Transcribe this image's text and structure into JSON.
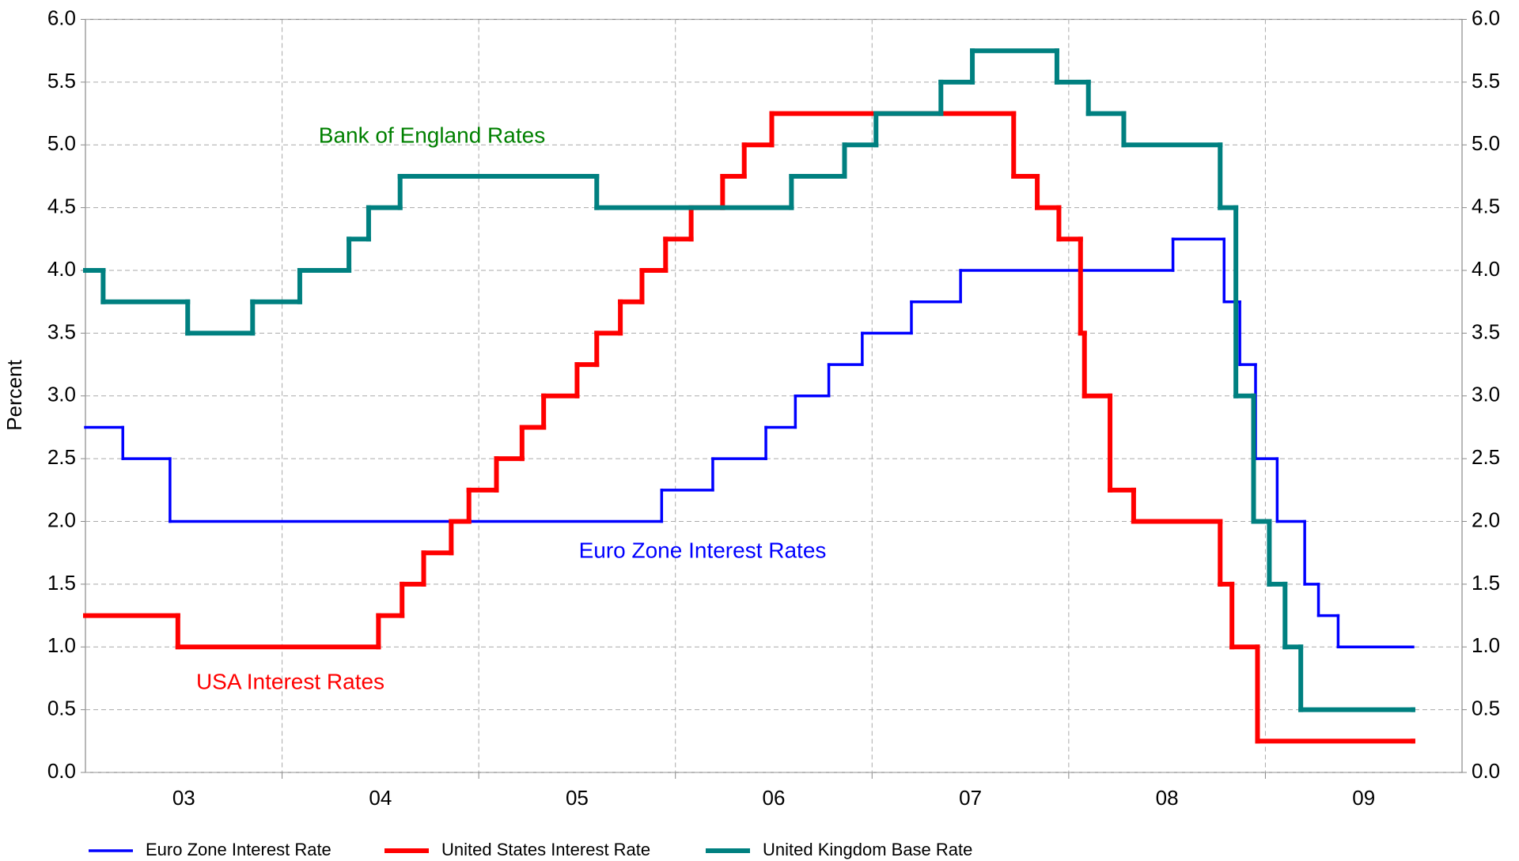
{
  "chart_data": {
    "type": "step",
    "y_label": "Percent",
    "xlim": [
      2003,
      2010
    ],
    "xgrid": [
      2004,
      2005,
      2006,
      2007,
      2008,
      2009
    ],
    "xticks": [
      {
        "value": 2003.5,
        "label": "03"
      },
      {
        "value": 2004.5,
        "label": "04"
      },
      {
        "value": 2005.5,
        "label": "05"
      },
      {
        "value": 2006.5,
        "label": "06"
      },
      {
        "value": 2007.5,
        "label": "07"
      },
      {
        "value": 2008.5,
        "label": "08"
      },
      {
        "value": 2009.5,
        "label": "09"
      }
    ],
    "ylim": [
      0,
      6
    ],
    "yticks": [
      {
        "value": 0,
        "label": "0.0"
      },
      0.5,
      {
        "value": 1,
        "label": "1.0"
      },
      1.5,
      {
        "value": 2,
        "label": "2.0"
      },
      2.5,
      {
        "value": 3,
        "label": "3.0"
      },
      3.5,
      {
        "value": 4,
        "label": "4.0"
      },
      4.5,
      {
        "value": 5,
        "label": "5.0"
      },
      5.5,
      {
        "value": 6,
        "label": "6.0"
      }
    ],
    "y2lim": [
      0,
      6
    ],
    "y2ticks": [
      {
        "value": 0,
        "label": "0.0"
      },
      0.5,
      {
        "value": 1,
        "label": "1.0"
      },
      1.5,
      {
        "value": 2,
        "label": "2.0"
      },
      2.5,
      {
        "value": 3,
        "label": "3.0"
      },
      3.5,
      {
        "value": 4,
        "label": "4.0"
      },
      4.5,
      {
        "value": 5,
        "label": "5.0"
      },
      5.5,
      {
        "value": 6,
        "label": "6.0"
      }
    ],
    "grid": true,
    "annotations": [
      {
        "text": "Bank of England Rates",
        "color": "#008000"
      },
      {
        "text": "Euro Zone Interest Rates",
        "color": "#0000ff"
      },
      {
        "text": "USA Interest Rates",
        "color": "#ff0000"
      }
    ],
    "series": [
      {
        "name": "Euro Zone Interest Rate",
        "color": "#0000ff",
        "width": 3.5,
        "x": [
          2003,
          2003.19,
          2003.43,
          2005.93,
          2006.19,
          2006.46,
          2006.61,
          2006.78,
          2006.95,
          2007.2,
          2007.45,
          2008.53,
          2008.79,
          2008.87,
          2008.95,
          2009.06,
          2009.2,
          2009.27,
          2009.37,
          2009.75
        ],
        "values": [
          2.75,
          2.5,
          2.0,
          2.25,
          2.5,
          2.75,
          3.0,
          3.25,
          3.5,
          3.75,
          4.0,
          4.25,
          3.75,
          3.25,
          2.5,
          2.0,
          1.5,
          1.25,
          1.0,
          1.0
        ]
      },
      {
        "name": "United States Interest Rate",
        "color": "#ff0000",
        "width": 6,
        "x": [
          2003,
          2003.47,
          2004.49,
          2004.61,
          2004.72,
          2004.86,
          2004.95,
          2005.09,
          2005.22,
          2005.33,
          2005.5,
          2005.6,
          2005.72,
          2005.83,
          2005.95,
          2006.08,
          2006.24,
          2006.35,
          2006.49,
          2007.72,
          2007.84,
          2007.95,
          2008.06,
          2008.08,
          2008.21,
          2008.33,
          2008.77,
          2008.83,
          2008.96,
          2009.75
        ],
        "values": [
          1.25,
          1.0,
          1.25,
          1.5,
          1.75,
          2.0,
          2.25,
          2.5,
          2.75,
          3.0,
          3.25,
          3.5,
          3.75,
          4.0,
          4.25,
          4.5,
          4.75,
          5.0,
          5.25,
          4.75,
          4.5,
          4.25,
          3.5,
          3.0,
          2.25,
          2.0,
          1.5,
          1.0,
          0.25,
          0.25
        ]
      },
      {
        "name": "United Kingdom Base Rate",
        "color": "#008080",
        "width": 6,
        "x": [
          2003,
          2003.09,
          2003.52,
          2003.85,
          2004.09,
          2004.34,
          2004.44,
          2004.6,
          2005.6,
          2006.59,
          2006.86,
          2007.02,
          2007.35,
          2007.51,
          2007.94,
          2008.1,
          2008.28,
          2008.77,
          2008.85,
          2008.94,
          2009.02,
          2009.1,
          2009.18,
          2009.75
        ],
        "values": [
          4.0,
          3.75,
          3.5,
          3.75,
          4.0,
          4.25,
          4.5,
          4.75,
          4.5,
          4.75,
          5.0,
          5.25,
          5.5,
          5.75,
          5.5,
          5.25,
          5.0,
          4.5,
          3.0,
          2.0,
          1.5,
          1.0,
          0.5,
          0.5
        ]
      }
    ]
  }
}
